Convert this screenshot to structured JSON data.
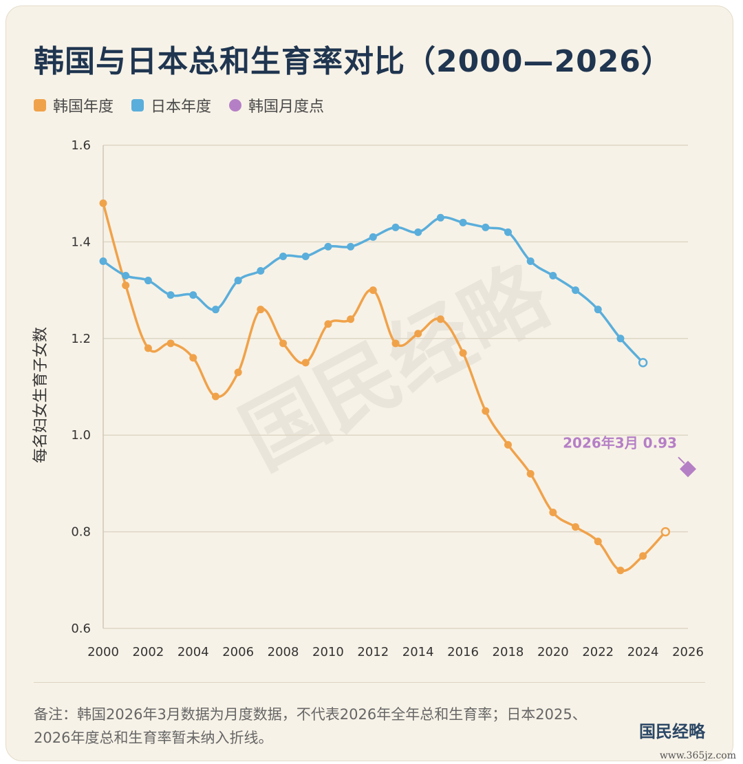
{
  "title": "韩国与日本总和生育率对比（2000—2026）",
  "legend": [
    {
      "label": "韩国年度",
      "color": "#f0a24a",
      "shape": "square"
    },
    {
      "label": "日本年度",
      "color": "#5aaedb",
      "shape": "square"
    },
    {
      "label": "韩国月度点",
      "color": "#b57fc6",
      "shape": "circle"
    }
  ],
  "note": "备注：韩国2026年3月数据为月度数据，不代表2026年全年总和生育率；日本2025、2026年度总和生育率暂未纳入折线。",
  "brand": "国民经略",
  "background_watermark": "国民经略",
  "watermark": "www.365jz.com",
  "chart_data": {
    "type": "line",
    "title": "韩国与日本总和生育率对比（2000—2026）",
    "ylabel": "每名妇女生育子女数",
    "xlabel": "",
    "xlim": [
      2000,
      2026
    ],
    "ylim": [
      0.6,
      1.6
    ],
    "xticks": [
      2000,
      2002,
      2004,
      2006,
      2008,
      2010,
      2012,
      2014,
      2016,
      2018,
      2020,
      2022,
      2024,
      2026
    ],
    "yticks": [
      "0.6",
      "0.8",
      "1.0",
      "1.2",
      "1.4",
      "1.6"
    ],
    "grid": true,
    "legend_position": "top-left",
    "series": [
      {
        "name": "韩国年度",
        "color": "#f0a24a",
        "x": [
          2000,
          2001,
          2002,
          2003,
          2004,
          2005,
          2006,
          2007,
          2008,
          2009,
          2010,
          2011,
          2012,
          2013,
          2014,
          2015,
          2016,
          2017,
          2018,
          2019,
          2020,
          2021,
          2022,
          2023,
          2024,
          2025
        ],
        "values": [
          1.48,
          1.31,
          1.18,
          1.19,
          1.16,
          1.08,
          1.13,
          1.26,
          1.19,
          1.15,
          1.23,
          1.24,
          1.3,
          1.19,
          1.21,
          1.24,
          1.17,
          1.05,
          0.98,
          0.92,
          0.84,
          0.81,
          0.78,
          0.72,
          0.75,
          0.8
        ]
      },
      {
        "name": "日本年度",
        "color": "#5aaedb",
        "x": [
          2000,
          2001,
          2002,
          2003,
          2004,
          2005,
          2006,
          2007,
          2008,
          2009,
          2010,
          2011,
          2012,
          2013,
          2014,
          2015,
          2016,
          2017,
          2018,
          2019,
          2020,
          2021,
          2022,
          2023,
          2024
        ],
        "values": [
          1.36,
          1.33,
          1.32,
          1.29,
          1.29,
          1.26,
          1.32,
          1.34,
          1.37,
          1.37,
          1.39,
          1.39,
          1.41,
          1.43,
          1.42,
          1.45,
          1.44,
          1.43,
          1.42,
          1.36,
          1.33,
          1.3,
          1.26,
          1.2,
          1.15
        ]
      },
      {
        "name": "韩国月度点",
        "color": "#b57fc6",
        "x": [
          2026.0
        ],
        "values": [
          0.93
        ],
        "annotation": "2026年3月 0.93"
      }
    ]
  }
}
